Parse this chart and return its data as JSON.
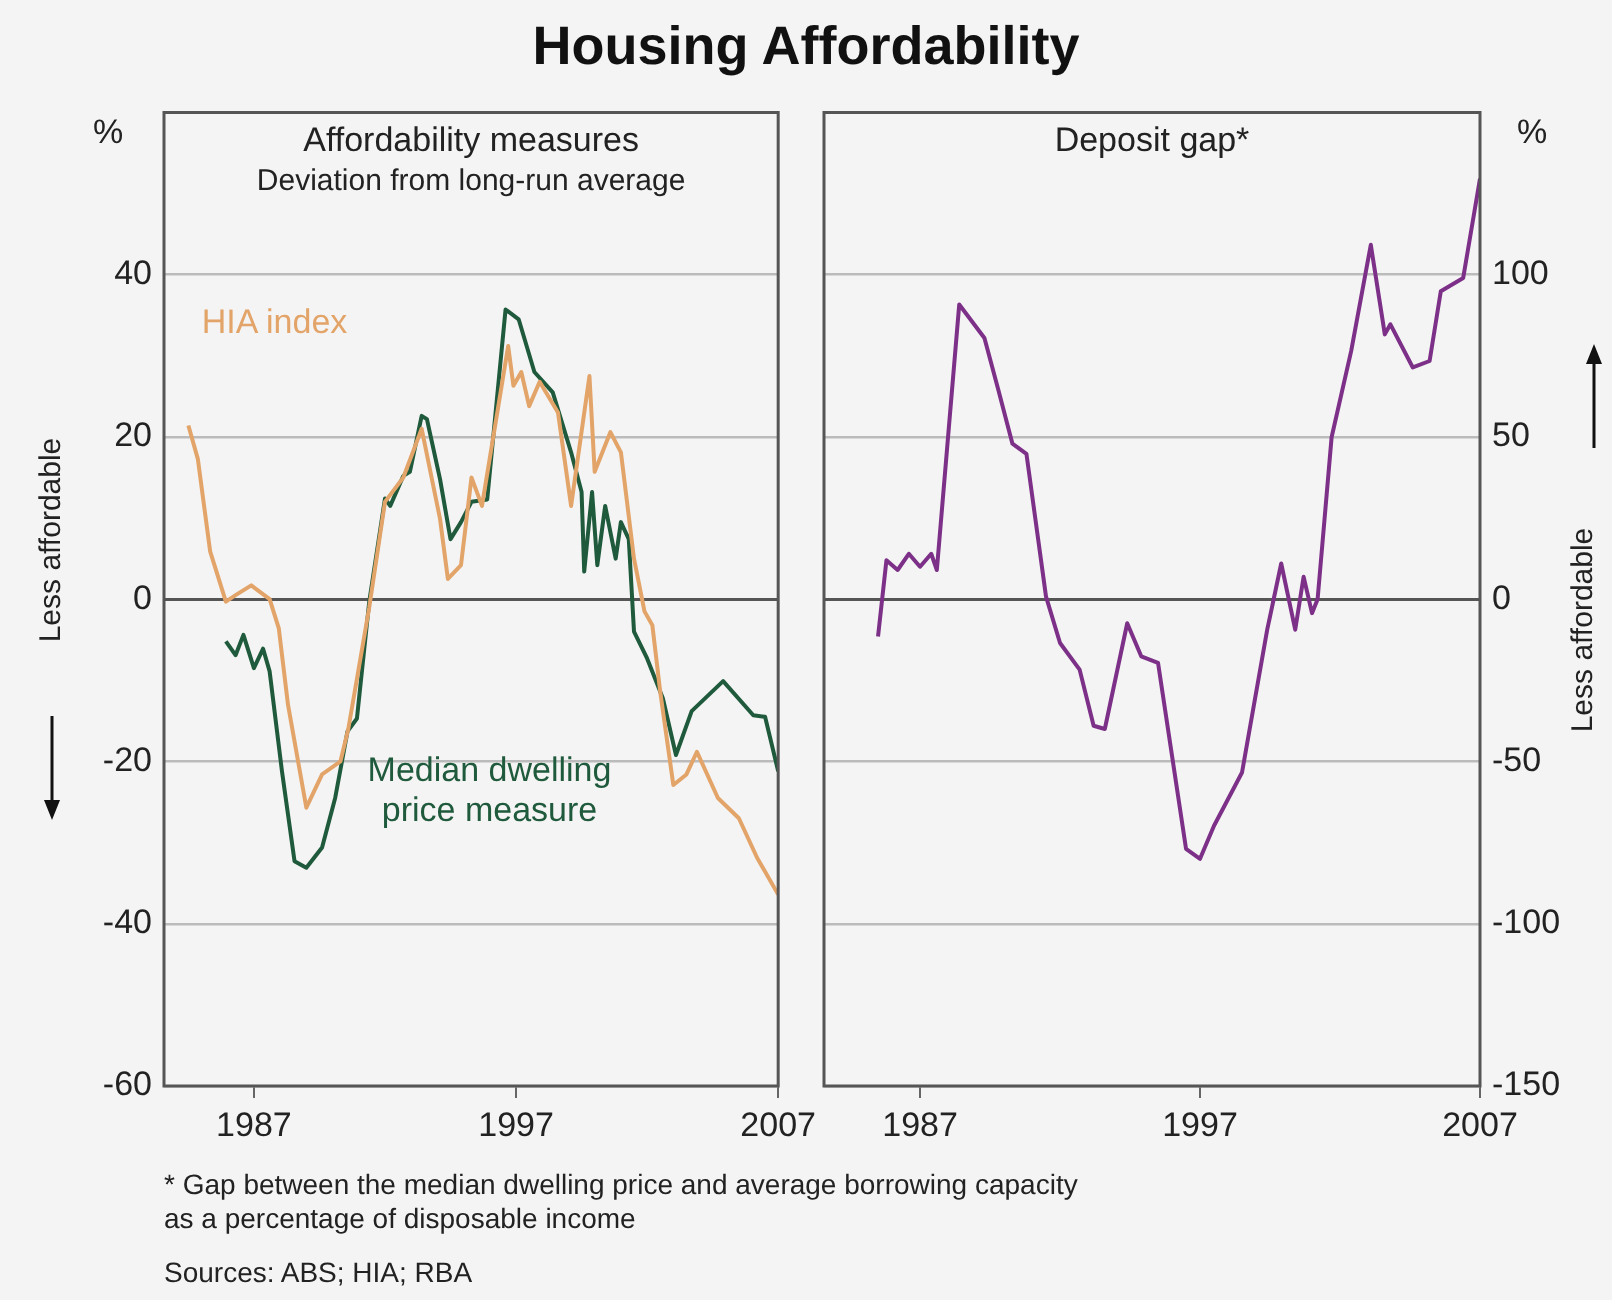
{
  "chart_data": [
    {
      "type": "line",
      "title": "Affordability measures",
      "subtitle": "Deviation from long-run average",
      "ylabel": "%",
      "annotations": [
        "Housing Affordability",
        "Less affordable"
      ],
      "xlim": [
        1983.57,
        2007
      ],
      "xticks": [
        1987,
        1997,
        2007
      ],
      "ylim": [
        -60,
        60
      ],
      "yticks": [
        -60,
        -40,
        -20,
        0,
        20,
        40
      ],
      "grid": "y",
      "legend": false,
      "marker": "none",
      "line_style": "solid",
      "series": [
        {
          "name": "HIA index",
          "color": "#e3a469",
          "x": [
            1984.5,
            1984.86,
            1985.33,
            1985.93,
            1986.3,
            1986.9,
            1987.6,
            1987.95,
            1988.3,
            1989.0,
            1989.6,
            1990.3,
            1990.6,
            1991.4,
            1992.0,
            1992.7,
            1993.4,
            1994.1,
            1994.4,
            1994.9,
            1995.3,
            1995.7,
            1996.7,
            1996.9,
            1997.2,
            1997.5,
            1997.9,
            1998.6,
            1999.1,
            1999.8,
            2000.0,
            2000.6,
            2001.0,
            2001.5,
            2001.9,
            2002.2,
            2002.5,
            2003.0,
            2003.5,
            2003.9,
            2004.7,
            2005.5,
            2006.2,
            2007.0
          ],
          "values": [
            21.4,
            17.3,
            5.9,
            -0.3,
            0.5,
            1.7,
            0,
            -3.6,
            -13,
            -25.7,
            -21.6,
            -20,
            -16,
            -1,
            12,
            15,
            21,
            9.9,
            2.5,
            4.2,
            15,
            11.5,
            31.2,
            26.3,
            28,
            23.8,
            26.8,
            23,
            11.5,
            27.5,
            15.7,
            20.6,
            18.1,
            5,
            -1.5,
            -3.2,
            -11.4,
            -22.9,
            -21.6,
            -18.8,
            -24.5,
            -27,
            -31.9,
            -36.4
          ]
        },
        {
          "name": "Median dwelling price measure",
          "color": "#1f5a3c",
          "x": [
            1985.93,
            1986.3,
            1986.6,
            1987.0,
            1987.35,
            1987.6,
            1988.07,
            1988.55,
            1989.0,
            1989.6,
            1990.1,
            1990.57,
            1990.93,
            1991.4,
            1992.0,
            1992.2,
            1992.7,
            1992.95,
            1993.4,
            1993.6,
            1994.1,
            1994.5,
            1994.9,
            1995.3,
            1995.9,
            1996.6,
            1997.1,
            1997.7,
            1998.4,
            1999.1,
            1999.5,
            1999.6,
            1999.9,
            2000.1,
            2000.4,
            2000.8,
            2001.0,
            2001.3,
            2001.5,
            2002.0,
            2002.6,
            2003.1,
            2003.7,
            2004.9,
            2006.05,
            2006.5,
            2007.0
          ],
          "values": [
            -5.2,
            -6.9,
            -4.4,
            -8.5,
            -6.1,
            -8.9,
            -21.2,
            -32.3,
            -33.1,
            -30.6,
            -24.5,
            -16.3,
            -14.7,
            -0.3,
            12.4,
            11.5,
            15.2,
            15.7,
            22.6,
            22.2,
            14.8,
            7.4,
            9.5,
            12,
            12.3,
            35.7,
            34.5,
            28,
            25.5,
            18.1,
            13.2,
            3.4,
            13.2,
            4.2,
            11.5,
            5,
            9.5,
            7.4,
            -4,
            -7.3,
            -12.2,
            -19.2,
            -13.8,
            -10.1,
            -14.3,
            -14.5,
            -21.2
          ]
        }
      ]
    },
    {
      "type": "line",
      "title": "Deposit gap*",
      "ylabel": "%",
      "annotations": [
        "Less affordable",
        "* Gap between the median dwelling price and average borrowing capacity as a percentage of disposable income",
        "Sources: ABS; HIA; RBA"
      ],
      "xlim": [
        1983.57,
        2007
      ],
      "xticks": [
        1987,
        1997,
        2007
      ],
      "ylim": [
        -150,
        150
      ],
      "yticks": [
        -150,
        -100,
        -50,
        0,
        50,
        100
      ],
      "grid": "y",
      "legend": false,
      "marker": "none",
      "line_style": "solid",
      "series": [
        {
          "color": "#7d3088",
          "x": [
            1985.5,
            1985.8,
            1986.2,
            1986.6,
            1987.0,
            1987.4,
            1987.6,
            1988.4,
            1989.3,
            1989.8,
            1990.3,
            1990.8,
            1991.5,
            1992.0,
            1992.7,
            1993.2,
            1993.6,
            1994.4,
            1994.9,
            1995.5,
            1996.5,
            1997.0,
            1997.5,
            1998.5,
            1999.4,
            1999.9,
            2000.4,
            2000.7,
            2001.0,
            2001.2,
            2001.7,
            2002.4,
            2003.1,
            2003.6,
            2003.8,
            2004.6,
            2005.2,
            2005.6,
            2006.4,
            2007.0
          ],
          "values": [
            -11.5,
            12,
            9,
            14,
            10,
            14,
            9,
            90.8,
            80.5,
            64.4,
            47.9,
            44.8,
            0.8,
            -13.5,
            -21.7,
            -39,
            -40,
            -7.4,
            -17.6,
            -19.6,
            -76.9,
            -80,
            -69.8,
            -53.4,
            -9.4,
            11,
            -9.4,
            6.9,
            -4.3,
            0,
            49.9,
            76.5,
            109.2,
            81.6,
            84.7,
            71.4,
            73.4,
            94.9,
            99,
            129.6
          ]
        }
      ]
    }
  ]
}
